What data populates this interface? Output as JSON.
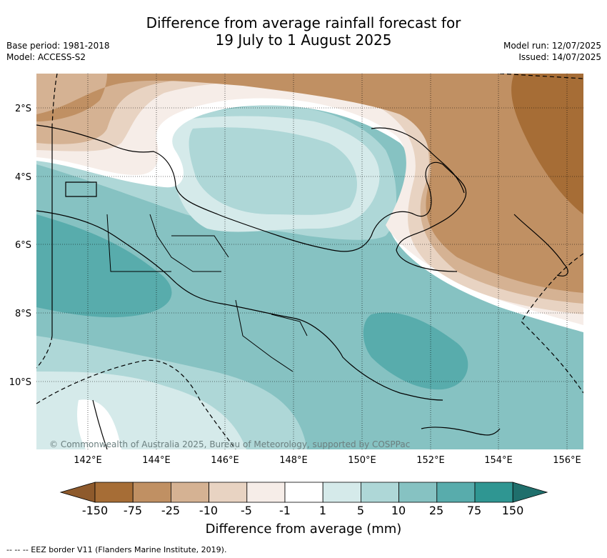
{
  "header": {
    "title_line1": "Difference from average rainfall forecast for",
    "title_line2": "19 July to 1 August 2025",
    "base_period": "Base period: 1981-2018",
    "model": "Model: ACCESS-S2",
    "model_run": "Model run: 12/07/2025",
    "issued": "Issued: 14/07/2025"
  },
  "map": {
    "lon_ticks": [
      "142°E",
      "144°E",
      "146°E",
      "148°E",
      "150°E",
      "152°E",
      "154°E",
      "156°E"
    ],
    "lat_ticks": [
      "2°S",
      "4°S",
      "6°S",
      "8°S",
      "10°S"
    ],
    "copyright": "© Commonwealth of Australia 2025, Bureau of Meteorology, supported by COSPPac"
  },
  "colorbar": {
    "labels": [
      "-150",
      "-75",
      "-25",
      "-10",
      "-5",
      "-1",
      "1",
      "5",
      "10",
      "25",
      "75",
      "150"
    ],
    "colors": [
      "#a66d36",
      "#c09063",
      "#d5b293",
      "#e8d3c2",
      "#f6ede8",
      "#ffffff",
      "#d5eaea",
      "#aed7d7",
      "#86c2c2",
      "#58acac",
      "#2f9692",
      "#1f6f6c",
      "#8e5a2c"
    ],
    "title": "Difference from average (mm)"
  },
  "footer": {
    "eez_note": "--  --  -- EEZ border V11 (Flanders Marine Institute, 2019)."
  }
}
